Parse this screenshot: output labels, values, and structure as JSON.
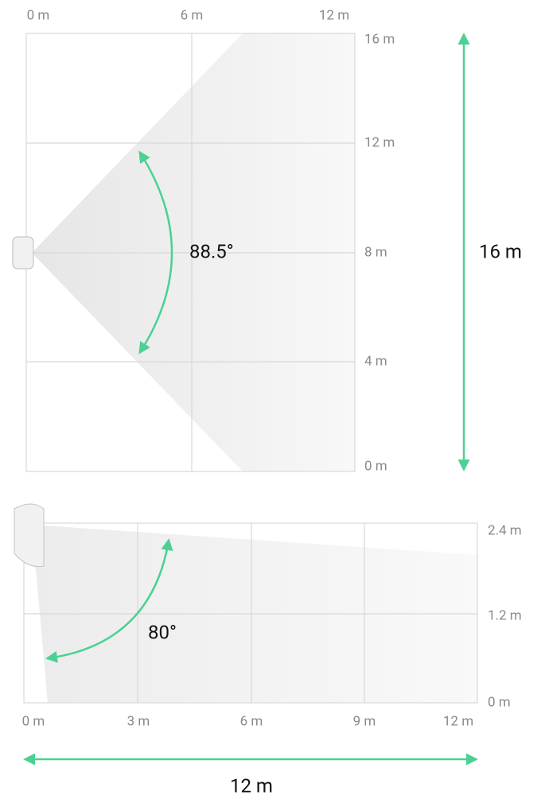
{
  "top_view": {
    "x_labels": [
      "0 m",
      "6 m",
      "12 m"
    ],
    "y_labels": [
      "16 m",
      "12 m",
      "8 m",
      "4 m",
      "0 m"
    ],
    "angle": "88.5°",
    "range_label": "16 m"
  },
  "side_view": {
    "x_labels": [
      "0 m",
      "3 m",
      "6 m",
      "9 m",
      "12 m"
    ],
    "y_labels": [
      "2.4 m",
      "1.2 m",
      "0 m"
    ],
    "angle": "80°",
    "range_label": "12 m"
  }
}
